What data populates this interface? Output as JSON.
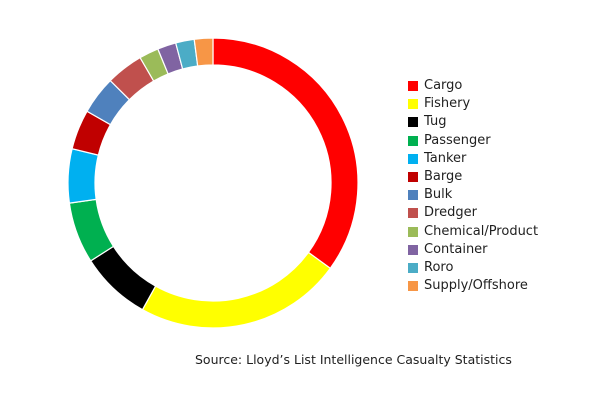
{
  "chart_data": {
    "type": "pie",
    "variant": "donut",
    "title": "",
    "legend_position": "right",
    "slices": [
      {
        "label": "Cargo",
        "value": 35.5,
        "color": "#ff0000"
      },
      {
        "label": "Fishery",
        "value": 23.4,
        "color": "#ffff00"
      },
      {
        "label": "Tug",
        "value": 8.0,
        "color": "#000000"
      },
      {
        "label": "Passenger",
        "value": 6.9,
        "color": "#00b050"
      },
      {
        "label": "Tanker",
        "value": 6.1,
        "color": "#00b0f0"
      },
      {
        "label": "Barge",
        "value": 4.5,
        "color": "#c00000"
      },
      {
        "label": "Bulk",
        "value": 4.3,
        "color": "#4f81bd"
      },
      {
        "label": "Dredger",
        "value": 4.2,
        "color": "#c0504d"
      },
      {
        "label": "Chemical/Product",
        "value": 2.2,
        "color": "#9bbb59"
      },
      {
        "label": "Container",
        "value": 2.1,
        "color": "#8064a2"
      },
      {
        "label": "Roro",
        "value": 2.1,
        "color": "#4bacc6"
      },
      {
        "label": "Supply/Offshore",
        "value": 2.1,
        "color": "#f79646"
      }
    ]
  },
  "source_note": "Source: Lloyd’s List Intelligence Casualty Statistics"
}
